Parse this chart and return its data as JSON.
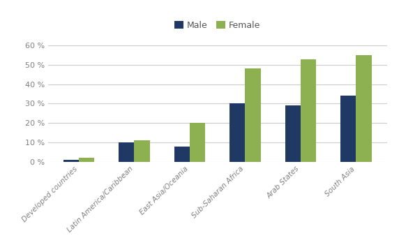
{
  "categories": [
    "Developed countries",
    "Latin America/Caribbean",
    "East Asia/Oceania",
    "Sub-Saharan Africa",
    "Arab States",
    "South Asia"
  ],
  "male_values": [
    1,
    10,
    8,
    30,
    29,
    34
  ],
  "female_values": [
    2,
    11,
    20,
    48,
    53,
    55
  ],
  "male_color": "#1F3864",
  "female_color": "#8DB050",
  "legend_labels": [
    "Male",
    "Female"
  ],
  "ylim": [
    0,
    65
  ],
  "yticks": [
    0,
    10,
    20,
    30,
    40,
    50,
    60
  ],
  "bar_width": 0.28,
  "grid_color": "#cccccc",
  "background_color": "#ffffff",
  "tick_label_fontsize": 7.5,
  "legend_fontsize": 9,
  "y_tick_fontsize": 8
}
